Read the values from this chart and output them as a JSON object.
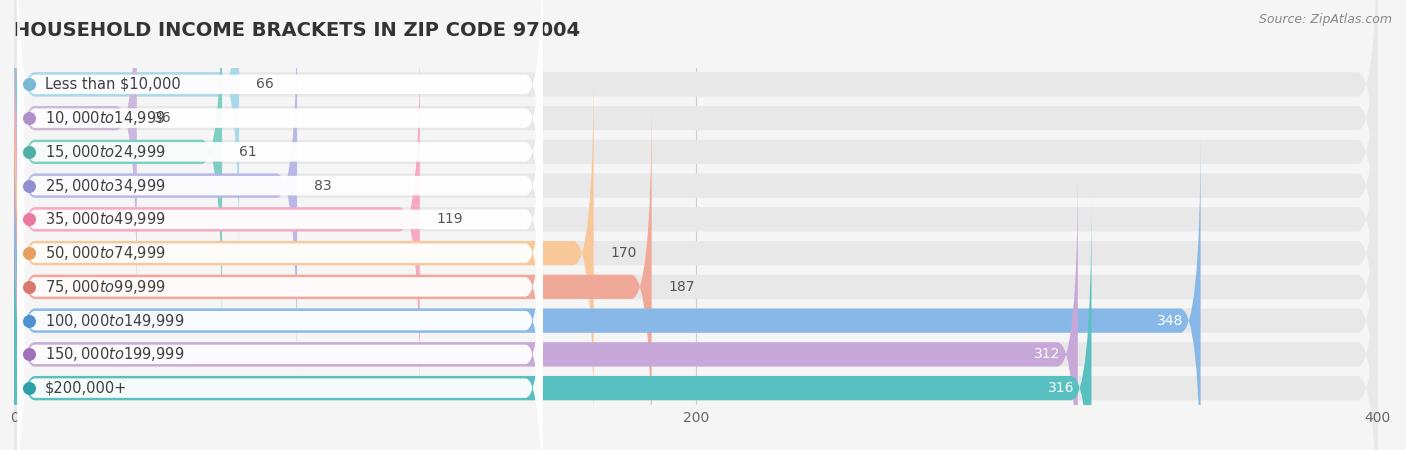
{
  "title": "HOUSEHOLD INCOME BRACKETS IN ZIP CODE 97004",
  "source": "Source: ZipAtlas.com",
  "categories": [
    "Less than $10,000",
    "$10,000 to $14,999",
    "$15,000 to $24,999",
    "$25,000 to $34,999",
    "$35,000 to $49,999",
    "$50,000 to $74,999",
    "$75,000 to $99,999",
    "$100,000 to $149,999",
    "$150,000 to $199,999",
    "$200,000+"
  ],
  "values": [
    66,
    36,
    61,
    83,
    119,
    170,
    187,
    348,
    312,
    316
  ],
  "bar_colors": [
    "#a8d8ea",
    "#cbb8dc",
    "#7ecec4",
    "#b8b8e8",
    "#f8a8c0",
    "#f8c898",
    "#f0a898",
    "#88b8e8",
    "#c8a8d8",
    "#58c0c0"
  ],
  "dot_colors": [
    "#7ab8d4",
    "#b090c8",
    "#50b0a8",
    "#9090d0",
    "#e878a0",
    "#e8a060",
    "#d87870",
    "#5090d0",
    "#a070b8",
    "#30a0a8"
  ],
  "xlim": [
    0,
    400
  ],
  "xticks": [
    0,
    200,
    400
  ],
  "background_color": "#f5f5f5",
  "bar_bg_color": "#e8e8e8",
  "title_fontsize": 14,
  "label_fontsize": 10.5,
  "value_fontsize": 10
}
